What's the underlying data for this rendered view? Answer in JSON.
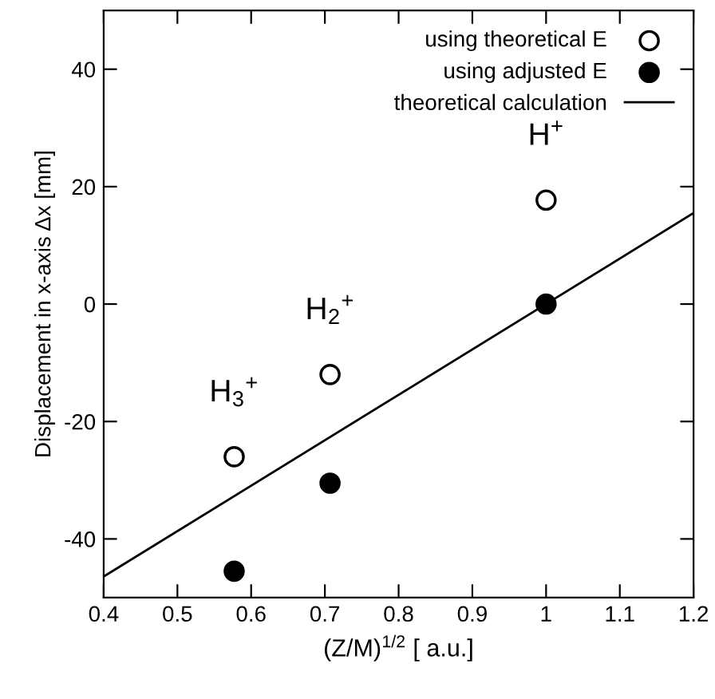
{
  "chart_data": {
    "type": "scatter",
    "xlabel": "(Z/M)$^{1/2}$ [ a.u.]",
    "ylabel": "Displacement in x-axis Δx [mm]",
    "xlim": [
      0.4,
      1.2
    ],
    "xticks": [
      0.4,
      0.5,
      0.6,
      0.7,
      0.8,
      0.9,
      1,
      1.1,
      1.2
    ],
    "ylim": [
      -50,
      50
    ],
    "yticks": [
      -40,
      -20,
      0,
      20,
      40
    ],
    "grid": false,
    "legend": "top right",
    "series": [
      {
        "name": "using theoretical E",
        "marker": "circle",
        "color": "#ffffff",
        "x": [
          0.577,
          0.707,
          1.0
        ],
        "values": [
          -26,
          -12,
          17.7
        ]
      },
      {
        "name": "using adjusted E",
        "marker": "circle",
        "color": "#000000",
        "x": [
          0.577,
          0.707,
          1.0
        ],
        "values": [
          -45.5,
          -30.5,
          0
        ]
      },
      {
        "name": "theoretical calculation",
        "type": "line",
        "marker": "none",
        "line_style": "solid",
        "color": "#000000",
        "x": [
          0.4,
          1.2
        ],
        "values": [
          -46.4,
          15.5
        ]
      }
    ],
    "annotations": [
      {
        "text": "H$_{3}$$^{+}$",
        "x": 0.577,
        "y": -26
      },
      {
        "text": "H$_{2}$$^{+}$",
        "x": 0.707,
        "y": -12
      },
      {
        "text": "H$^{+}$",
        "x": 1.0,
        "y": 17.7
      }
    ]
  }
}
